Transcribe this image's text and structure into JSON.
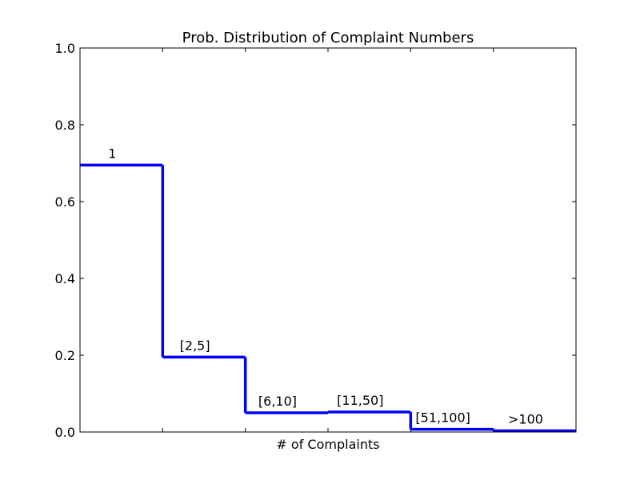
{
  "chart_data": {
    "type": "line",
    "title": "Prob. Distribution of Complaint Numbers",
    "xlabel": "# of Complaints",
    "ylabel": "",
    "ylim": [
      0,
      1.0
    ],
    "yticks": [
      "0.0",
      "0.2",
      "0.4",
      "0.6",
      "0.8",
      "1.0"
    ],
    "grid": false,
    "series": [
      {
        "color": "#0000ff",
        "categories": [
          "1",
          "[2,5]",
          "[6,10]",
          "[11,50]",
          "[51,100]",
          ">100"
        ],
        "values": [
          0.695,
          0.195,
          0.05,
          0.052,
          0.007,
          0.003
        ]
      }
    ]
  }
}
